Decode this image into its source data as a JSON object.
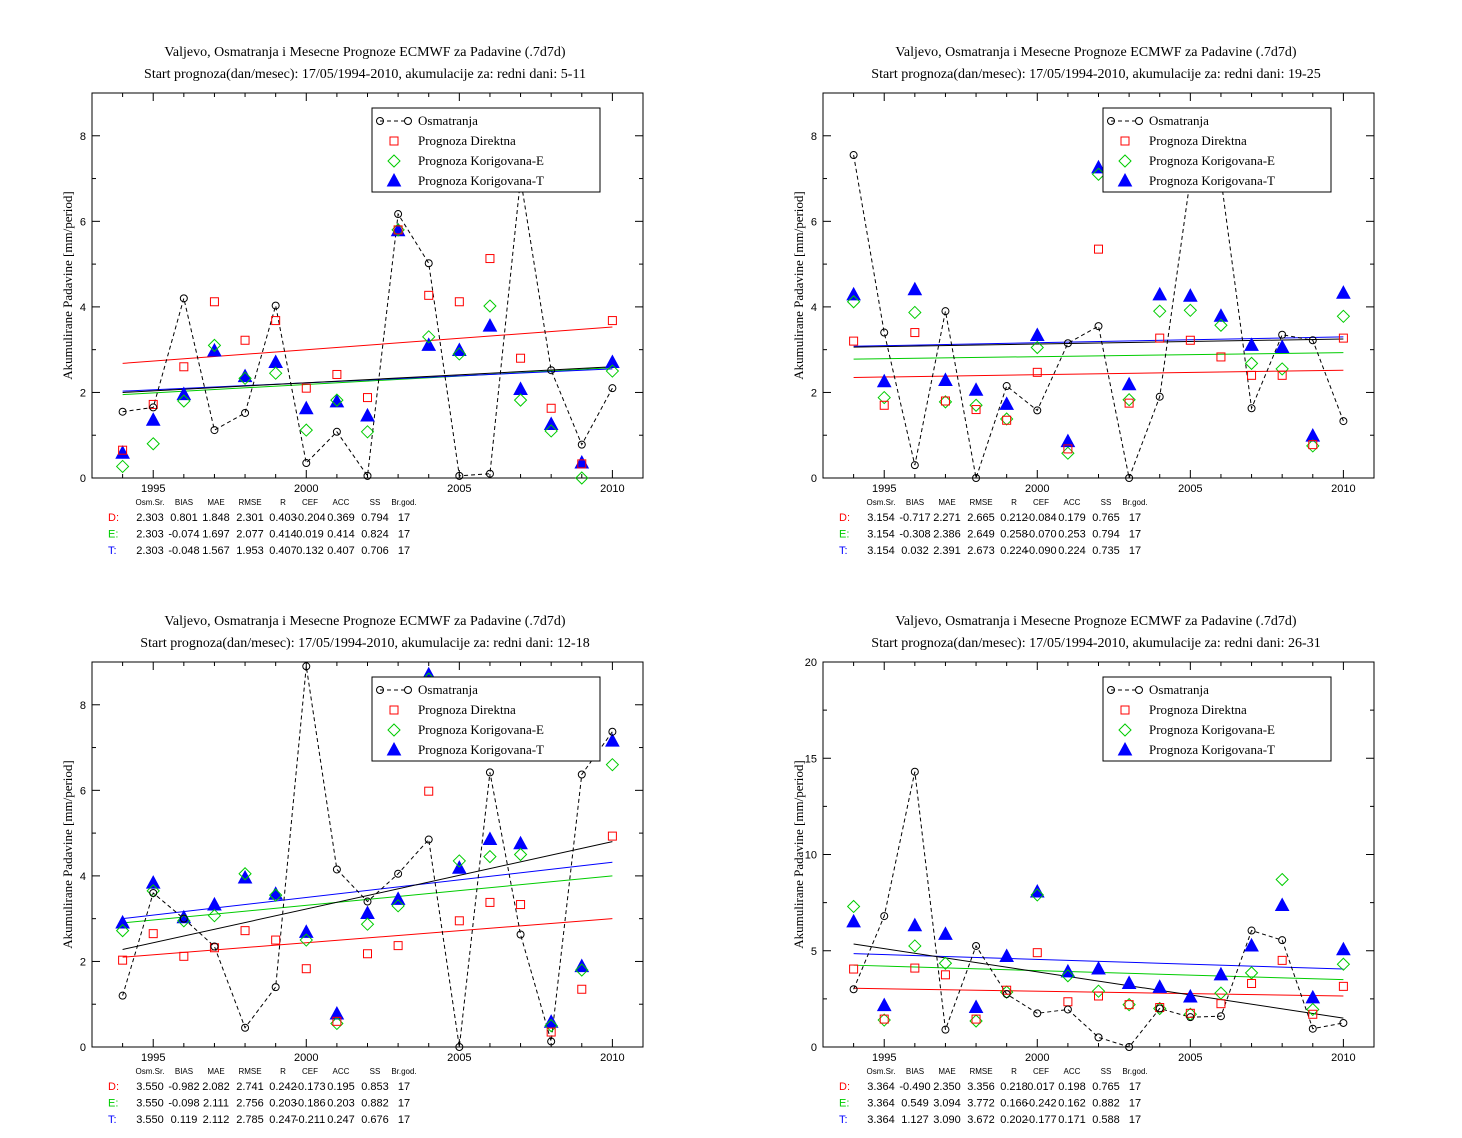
{
  "legend": {
    "obs": "Osmatranja",
    "direct": "Prognoza Direktna",
    "corr_e": "Prognoza Korigovana-E",
    "corr_t": "Prognoza Korigovana-T"
  },
  "ylabel": "Akumulirane Padavine [mm/period]",
  "stats_header": [
    "Osm.Sr.",
    "BIAS",
    "MAE",
    "RMSE",
    "R",
    "CEF",
    "ACC",
    "SS",
    "Br.god."
  ],
  "colors": {
    "obs": "#000000",
    "direct": "#ff0000",
    "corr_e": "#00cc00",
    "corr_t": "#0000ff",
    "axis": "#000000"
  },
  "chart_data": [
    {
      "type": "scatter",
      "title": "Valjevo, Osmatranja i Mesecne Prognoze ECMWF za Padavine (.7d7d)",
      "subtitle": "Start prognoza(dan/mesec): 17/05/1994-2010, akumulacije za: redni dani: 5-11",
      "ylabel": "Akumulirane Padavine [mm/period]",
      "xlim": [
        1993,
        2011
      ],
      "ylim": [
        0,
        9
      ],
      "xticks": [
        1995,
        2000,
        2005,
        2010
      ],
      "yticks": [
        0,
        2,
        4,
        6,
        8
      ],
      "x": [
        1994,
        1995,
        1996,
        1997,
        1998,
        1999,
        2000,
        2001,
        2002,
        2003,
        2004,
        2005,
        2006,
        2007,
        2008,
        2009,
        2010
      ],
      "series": [
        {
          "name": "Osmatranja",
          "values": [
            1.55,
            1.65,
            4.2,
            1.12,
            1.52,
            4.03,
            0.35,
            1.08,
            0.05,
            6.17,
            5.02,
            0.05,
            0.1,
            7.0,
            2.52,
            0.78,
            2.1
          ]
        },
        {
          "name": "Prognoza Direktna",
          "values": [
            0.65,
            1.72,
            2.6,
            4.12,
            3.22,
            3.68,
            2.1,
            2.42,
            1.88,
            5.8,
            4.27,
            4.12,
            5.13,
            2.8,
            1.63,
            0.33,
            3.68
          ]
        },
        {
          "name": "Prognoza Korigovana-E",
          "values": [
            0.27,
            0.8,
            1.8,
            3.1,
            2.33,
            2.45,
            1.12,
            1.82,
            1.08,
            5.8,
            3.3,
            2.9,
            4.02,
            1.82,
            1.1,
            0.0,
            2.5
          ]
        },
        {
          "name": "Prognoza Korigovana-T",
          "values": [
            0.58,
            1.35,
            1.95,
            2.97,
            2.37,
            2.7,
            1.62,
            1.78,
            1.45,
            5.78,
            3.1,
            2.98,
            3.55,
            2.07,
            1.25,
            0.35,
            2.7
          ]
        }
      ],
      "trends": [
        {
          "series": "Prognoza Direktna",
          "start": 2.68,
          "end": 3.53
        },
        {
          "series": "Prognoza Korigovana-E",
          "start": 1.95,
          "end": 2.58
        },
        {
          "series": "Prognoza Korigovana-T",
          "start": 2.03,
          "end": 2.55
        },
        {
          "series": "Osmatranja",
          "start": 2.0,
          "end": 2.6
        }
      ],
      "stats": [
        {
          "label": "D:",
          "values": [
            "2.303",
            "0.801",
            "1.848",
            "2.301",
            "0.403",
            "-0.204",
            "0.369",
            "0.794",
            "17"
          ]
        },
        {
          "label": "E:",
          "values": [
            "2.303",
            "-0.074",
            "1.697",
            "2.077",
            "0.414",
            "0.019",
            "0.414",
            "0.824",
            "17"
          ]
        },
        {
          "label": "T:",
          "values": [
            "2.303",
            "-0.048",
            "1.567",
            "1.953",
            "0.407",
            "0.132",
            "0.407",
            "0.706",
            "17"
          ]
        }
      ]
    },
    {
      "type": "scatter",
      "title": "Valjevo, Osmatranja i Mesecne Prognoze ECMWF za Padavine (.7d7d)",
      "subtitle": "Start prognoza(dan/mesec): 17/05/1994-2010, akumulacije za: redni dani: 19-25",
      "ylabel": "Akumulirane Padavine [mm/period]",
      "xlim": [
        1993,
        2011
      ],
      "ylim": [
        0,
        9
      ],
      "xticks": [
        1995,
        2000,
        2005,
        2010
      ],
      "yticks": [
        0,
        2,
        4,
        6,
        8
      ],
      "x": [
        1994,
        1995,
        1996,
        1997,
        1998,
        1999,
        2000,
        2001,
        2002,
        2003,
        2004,
        2005,
        2006,
        2007,
        2008,
        2009,
        2010
      ],
      "series": [
        {
          "name": "Osmatranja",
          "values": [
            7.55,
            3.4,
            0.3,
            3.9,
            0.0,
            2.15,
            1.58,
            3.15,
            3.55,
            0.0,
            1.9,
            7.0,
            7.0,
            1.63,
            3.35,
            3.22,
            1.33
          ]
        },
        {
          "name": "Prognoza Direktna",
          "values": [
            3.2,
            1.7,
            3.4,
            1.8,
            1.6,
            1.35,
            2.47,
            0.68,
            5.35,
            1.75,
            3.27,
            3.22,
            2.83,
            2.4,
            2.4,
            0.78,
            3.27
          ]
        },
        {
          "name": "Prognoza Korigovana-E",
          "values": [
            4.12,
            1.88,
            3.87,
            1.78,
            1.7,
            1.38,
            3.05,
            0.58,
            7.1,
            1.83,
            3.9,
            3.92,
            3.57,
            2.68,
            2.55,
            0.75,
            3.78
          ]
        },
        {
          "name": "Prognoza Korigovana-T",
          "values": [
            4.28,
            2.25,
            4.4,
            2.28,
            2.05,
            1.72,
            3.33,
            0.85,
            7.25,
            2.18,
            4.28,
            4.25,
            3.78,
            3.1,
            3.05,
            0.98,
            4.32
          ]
        }
      ],
      "trends": [
        {
          "series": "Prognoza Direktna",
          "start": 2.35,
          "end": 2.52
        },
        {
          "series": "Prognoza Korigovana-E",
          "start": 2.78,
          "end": 2.93
        },
        {
          "series": "Prognoza Korigovana-T",
          "start": 3.08,
          "end": 3.3
        },
        {
          "series": "Osmatranja",
          "start": 3.06,
          "end": 3.25
        }
      ],
      "stats": [
        {
          "label": "D:",
          "values": [
            "3.154",
            "-0.717",
            "2.271",
            "2.665",
            "0.212",
            "-0.084",
            "0.179",
            "0.765",
            "17"
          ]
        },
        {
          "label": "E:",
          "values": [
            "3.154",
            "-0.308",
            "2.386",
            "2.649",
            "0.258",
            "-0.070",
            "0.253",
            "0.794",
            "17"
          ]
        },
        {
          "label": "T:",
          "values": [
            "3.154",
            "0.032",
            "2.391",
            "2.673",
            "0.224",
            "-0.090",
            "0.224",
            "0.735",
            "17"
          ]
        }
      ]
    },
    {
      "type": "scatter",
      "title": "Valjevo, Osmatranja i Mesecne Prognoze ECMWF za Padavine (.7d7d)",
      "subtitle": "Start prognoza(dan/mesec): 17/05/1994-2010, akumulacije za: redni dani: 12-18",
      "ylabel": "Akumulirane Padavine [mm/period]",
      "xlim": [
        1993,
        2011
      ],
      "ylim": [
        0,
        9
      ],
      "xticks": [
        1995,
        2000,
        2005,
        2010
      ],
      "yticks": [
        0,
        2,
        4,
        6,
        8
      ],
      "x": [
        1994,
        1995,
        1996,
        1997,
        1998,
        1999,
        2000,
        2001,
        2002,
        2003,
        2004,
        2005,
        2006,
        2007,
        2008,
        2009,
        2010
      ],
      "series": [
        {
          "name": "Osmatranja",
          "values": [
            1.2,
            3.6,
            3.0,
            2.35,
            0.45,
            1.4,
            8.9,
            4.15,
            3.4,
            4.05,
            4.85,
            0.0,
            6.42,
            2.63,
            0.13,
            6.37,
            7.37
          ]
        },
        {
          "name": "Prognoza Direktna",
          "values": [
            2.03,
            2.65,
            2.12,
            2.32,
            2.72,
            2.5,
            1.83,
            0.6,
            2.18,
            2.37,
            5.98,
            2.95,
            3.38,
            3.33,
            0.35,
            1.35,
            4.93
          ]
        },
        {
          "name": "Prognoza Korigovana-E",
          "values": [
            2.72,
            3.65,
            2.95,
            3.07,
            4.05,
            3.55,
            2.5,
            0.55,
            2.87,
            3.3,
            8.6,
            4.35,
            4.45,
            4.5,
            0.5,
            1.8,
            6.6
          ]
        },
        {
          "name": "Prognoza Korigovana-T",
          "values": [
            2.9,
            3.83,
            3.02,
            3.32,
            3.95,
            3.57,
            2.68,
            0.77,
            3.12,
            3.45,
            8.7,
            4.18,
            4.85,
            4.75,
            0.58,
            1.88,
            7.15
          ]
        }
      ],
      "trends": [
        {
          "series": "Prognoza Direktna",
          "start": 2.1,
          "end": 3.0
        },
        {
          "series": "Prognoza Korigovana-E",
          "start": 2.9,
          "end": 4.0
        },
        {
          "series": "Prognoza Korigovana-T",
          "start": 3.0,
          "end": 4.32
        },
        {
          "series": "Osmatranja",
          "start": 2.28,
          "end": 4.8
        }
      ],
      "stats": [
        {
          "label": "D:",
          "values": [
            "3.550",
            "-0.982",
            "2.082",
            "2.741",
            "0.242",
            "-0.173",
            "0.195",
            "0.853",
            "17"
          ]
        },
        {
          "label": "E:",
          "values": [
            "3.550",
            "-0.098",
            "2.111",
            "2.756",
            "0.203",
            "-0.186",
            "0.203",
            "0.882",
            "17"
          ]
        },
        {
          "label": "T:",
          "values": [
            "3.550",
            "0.119",
            "2.112",
            "2.785",
            "0.247",
            "-0.211",
            "0.247",
            "0.676",
            "17"
          ]
        }
      ]
    },
    {
      "type": "scatter",
      "title": "Valjevo, Osmatranja i Mesecne Prognoze ECMWF za Padavine (.7d7d)",
      "subtitle": "Start prognoza(dan/mesec): 17/05/1994-2010, akumulacije za: redni dani: 26-31",
      "ylabel": "Akumulirane Padavine [mm/period]",
      "xlim": [
        1993,
        2011
      ],
      "ylim": [
        0,
        20
      ],
      "xticks": [
        1995,
        2000,
        2005,
        2010
      ],
      "yticks": [
        0,
        5,
        10,
        15,
        20
      ],
      "x": [
        1994,
        1995,
        1996,
        1997,
        1998,
        1999,
        2000,
        2001,
        2002,
        2003,
        2004,
        2005,
        2006,
        2007,
        2008,
        2009,
        2010
      ],
      "series": [
        {
          "name": "Osmatranja",
          "values": [
            3.0,
            6.8,
            14.3,
            0.9,
            5.25,
            2.75,
            1.75,
            1.95,
            0.5,
            0.0,
            2.0,
            1.55,
            1.6,
            6.05,
            5.55,
            0.95,
            1.25
          ]
        },
        {
          "name": "Prognoza Direktna",
          "values": [
            4.05,
            1.45,
            4.1,
            3.75,
            1.45,
            2.95,
            4.9,
            2.35,
            2.65,
            2.2,
            2.05,
            1.75,
            2.25,
            3.3,
            4.5,
            1.7,
            3.15
          ]
        },
        {
          "name": "Prognoza Korigovana-E",
          "values": [
            7.3,
            1.4,
            5.25,
            4.35,
            1.35,
            2.85,
            7.9,
            3.7,
            2.9,
            2.2,
            2.0,
            1.7,
            2.8,
            3.85,
            8.7,
            1.95,
            4.3
          ]
        },
        {
          "name": "Prognoza Korigovana-T",
          "values": [
            6.5,
            2.15,
            6.3,
            5.85,
            2.05,
            4.7,
            8.05,
            3.9,
            4.05,
            3.3,
            3.1,
            2.6,
            3.75,
            5.25,
            7.35,
            2.55,
            5.05
          ]
        }
      ],
      "trends": [
        {
          "series": "Prognoza Direktna",
          "start": 3.05,
          "end": 2.65
        },
        {
          "series": "Prognoza Korigovana-E",
          "start": 4.25,
          "end": 3.5
        },
        {
          "series": "Prognoza Korigovana-T",
          "start": 4.85,
          "end": 4.05
        },
        {
          "series": "Osmatranja",
          "start": 5.35,
          "end": 1.5
        }
      ],
      "stats": [
        {
          "label": "D:",
          "values": [
            "3.364",
            "-0.490",
            "2.350",
            "3.356",
            "0.218",
            "0.017",
            "0.198",
            "0.765",
            "17"
          ]
        },
        {
          "label": "E:",
          "values": [
            "3.364",
            "0.549",
            "3.094",
            "3.772",
            "0.166",
            "-0.242",
            "0.162",
            "0.882",
            "17"
          ]
        },
        {
          "label": "T:",
          "values": [
            "3.364",
            "1.127",
            "3.090",
            "3.672",
            "0.202",
            "-0.177",
            "0.171",
            "0.588",
            "17"
          ]
        }
      ]
    }
  ]
}
